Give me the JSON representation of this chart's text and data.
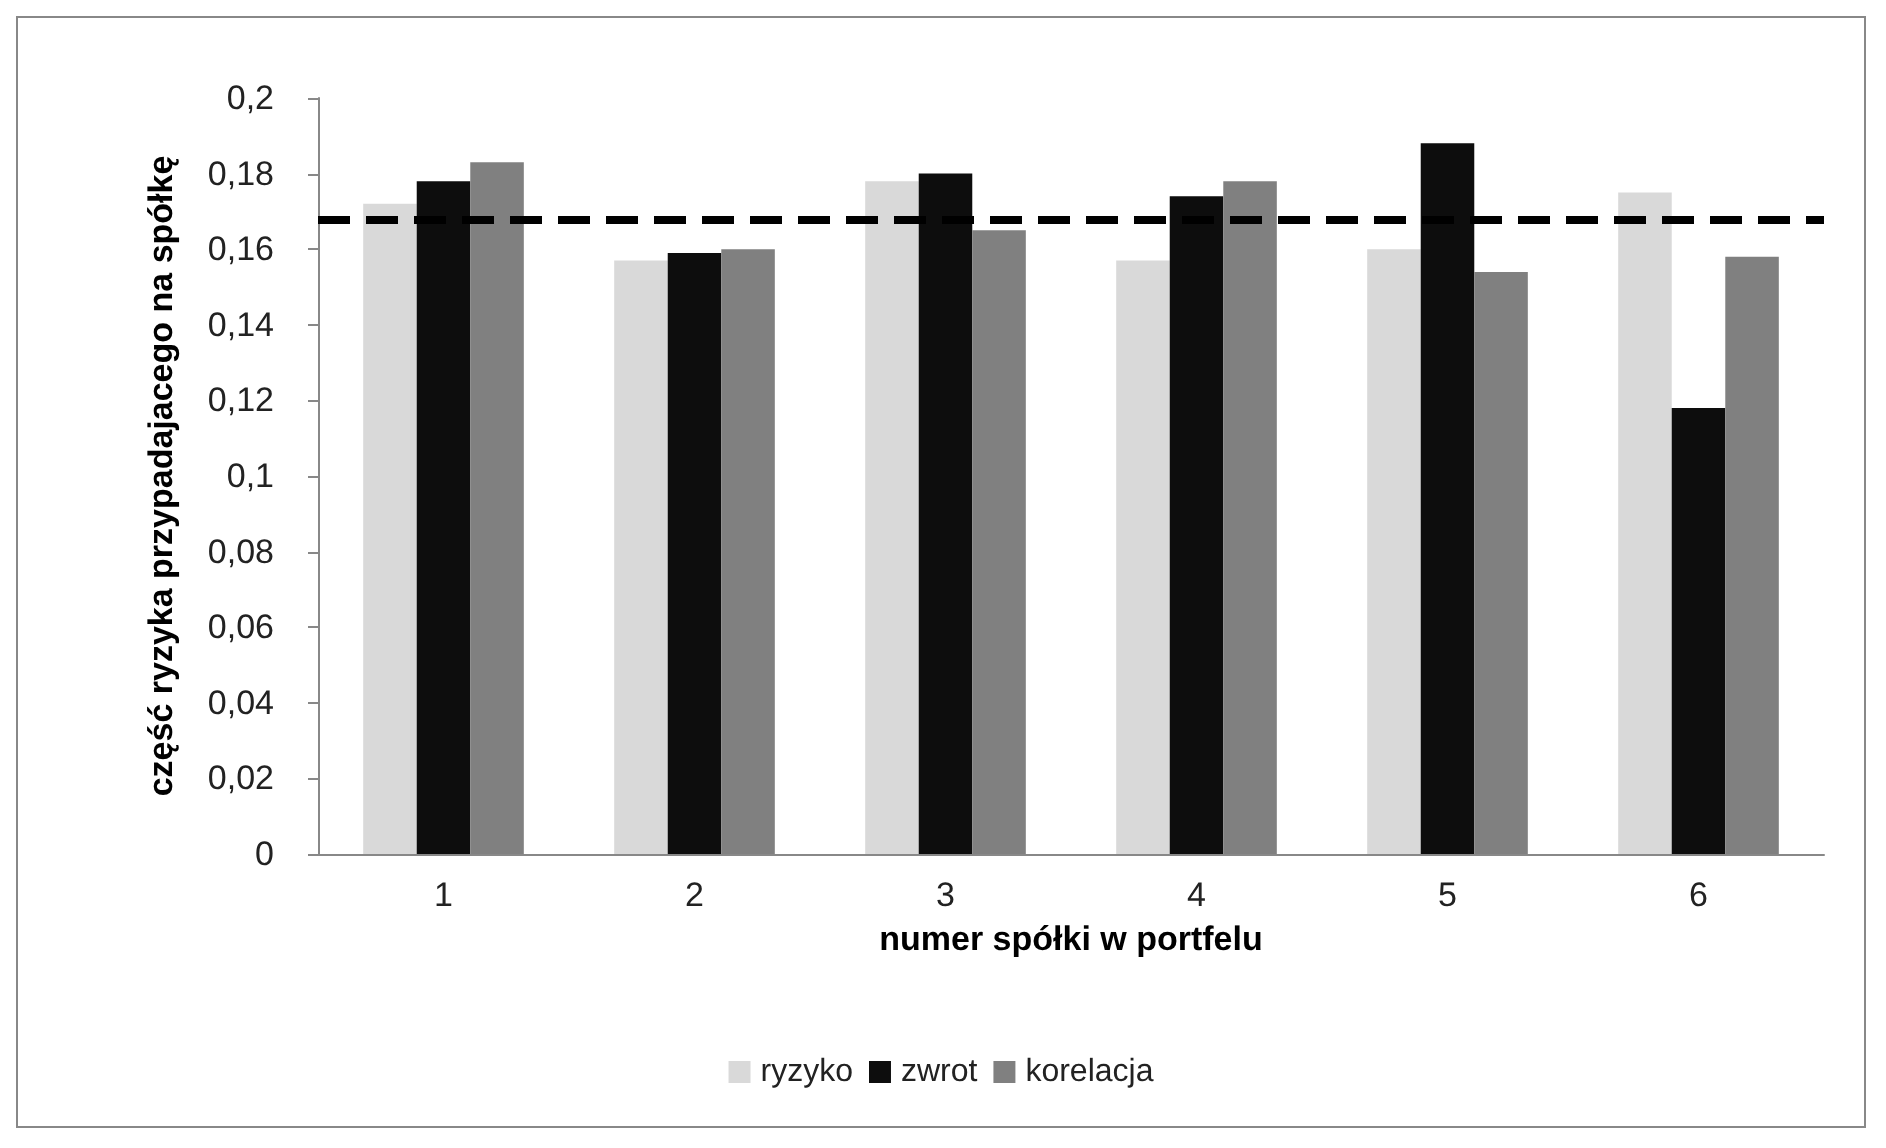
{
  "chart_data": {
    "type": "bar",
    "xlabel": "numer spółki w portfelu",
    "ylabel": "część ryzyka przypadajacego na spółkę",
    "categories": [
      "1",
      "2",
      "3",
      "4",
      "5",
      "6"
    ],
    "series": [
      {
        "name": "ryzyko",
        "color": "#d9d9d9",
        "values": [
          0.172,
          0.157,
          0.178,
          0.157,
          0.16,
          0.175
        ]
      },
      {
        "name": "zwrot",
        "color": "#0d0d0d",
        "values": [
          0.178,
          0.159,
          0.18,
          0.174,
          0.188,
          0.118
        ]
      },
      {
        "name": "korelacja",
        "color": "#808080",
        "values": [
          0.183,
          0.16,
          0.165,
          0.178,
          0.154,
          0.158
        ]
      }
    ],
    "ylim": [
      0,
      0.2
    ],
    "yticks": [
      {
        "value": 0,
        "label": "0"
      },
      {
        "value": 0.02,
        "label": "0,02"
      },
      {
        "value": 0.04,
        "label": "0,04"
      },
      {
        "value": 0.06,
        "label": "0,06"
      },
      {
        "value": 0.08,
        "label": "0,08"
      },
      {
        "value": 0.1,
        "label": "0,1"
      },
      {
        "value": 0.12,
        "label": "0,12"
      },
      {
        "value": 0.14,
        "label": "0,14"
      },
      {
        "value": 0.16,
        "label": "0,16"
      },
      {
        "value": 0.18,
        "label": "0,18"
      },
      {
        "value": 0.2,
        "label": "0,2"
      }
    ],
    "ref_lines": [
      {
        "axis": "y",
        "value": 0.168,
        "color": "#000000",
        "line_style": "dashed"
      }
    ],
    "grid": false,
    "legend": "bottom"
  }
}
